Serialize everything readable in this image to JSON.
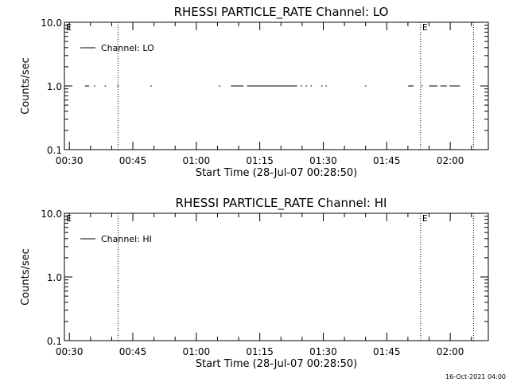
{
  "footer": {
    "timestamp": "16-Oct-2021 04:00"
  },
  "chart_data": [
    {
      "type": "line",
      "title": "RHESSI PARTICLE_RATE Channel: LO",
      "xlabel": "Start Time (28-Jul-07 00:28:50)",
      "ylabel": "Counts/sec",
      "yscale": "log",
      "ylim": [
        0.1,
        10.0
      ],
      "y_ticks": [
        "0.1",
        "1.0",
        "10.0"
      ],
      "xlim": [
        "00:28:50",
        "02:09:00"
      ],
      "x_ticks": [
        "00:30",
        "00:45",
        "01:00",
        "01:15",
        "01:30",
        "01:45",
        "02:00"
      ],
      "grid": false,
      "legend": {
        "position": "top-left",
        "entries": [
          "Channel: LO"
        ]
      },
      "event_markers": [
        {
          "time": "00:41:30",
          "label": ""
        },
        {
          "time": "01:53:00",
          "label": "E"
        },
        {
          "time": "02:05:30",
          "label": ""
        }
      ],
      "corner_flag": "E",
      "series": [
        {
          "name": "Channel: LO",
          "color": "#000000",
          "segments": [
            {
              "start": "00:33:40",
              "end": "00:34:40",
              "value": 1.0
            },
            {
              "start": "00:35:50",
              "end": "00:36:10",
              "value": 1.0
            },
            {
              "start": "00:38:20",
              "end": "00:38:40",
              "value": 1.0
            },
            {
              "start": "00:41:20",
              "end": "00:41:40",
              "value": 1.0
            },
            {
              "start": "00:49:10",
              "end": "00:49:30",
              "value": 1.0
            },
            {
              "start": "01:05:20",
              "end": "01:05:40",
              "value": 1.0
            },
            {
              "start": "01:08:10",
              "end": "01:11:10",
              "value": 1.0
            },
            {
              "start": "01:12:00",
              "end": "01:23:50",
              "value": 1.0
            },
            {
              "start": "01:24:40",
              "end": "01:25:00",
              "value": 1.0
            },
            {
              "start": "01:25:50",
              "end": "01:26:10",
              "value": 1.0
            },
            {
              "start": "01:27:00",
              "end": "01:27:20",
              "value": 1.0
            },
            {
              "start": "01:29:30",
              "end": "01:29:50",
              "value": 1.0
            },
            {
              "start": "01:30:30",
              "end": "01:30:50",
              "value": 1.0
            },
            {
              "start": "01:39:50",
              "end": "01:40:10",
              "value": 1.0
            },
            {
              "start": "01:50:00",
              "end": "01:51:20",
              "value": 1.0
            },
            {
              "start": "01:53:10",
              "end": "01:53:30",
              "value": 1.0
            },
            {
              "start": "01:55:00",
              "end": "01:57:00",
              "value": 1.0
            },
            {
              "start": "01:57:40",
              "end": "01:59:10",
              "value": 1.0
            },
            {
              "start": "01:59:50",
              "end": "02:02:20",
              "value": 1.0
            }
          ]
        }
      ]
    },
    {
      "type": "line",
      "title": "RHESSI PARTICLE_RATE Channel: HI",
      "xlabel": "Start Time (28-Jul-07 00:28:50)",
      "ylabel": "Counts/sec",
      "yscale": "log",
      "ylim": [
        0.1,
        10.0
      ],
      "y_ticks": [
        "0.1",
        "1.0",
        "10.0"
      ],
      "xlim": [
        "00:28:50",
        "02:09:00"
      ],
      "x_ticks": [
        "00:30",
        "00:45",
        "01:00",
        "01:15",
        "01:30",
        "01:45",
        "02:00"
      ],
      "grid": false,
      "legend": {
        "position": "top-left",
        "entries": [
          "Channel: HI"
        ]
      },
      "event_markers": [
        {
          "time": "00:41:30",
          "label": ""
        },
        {
          "time": "01:53:00",
          "label": "E"
        },
        {
          "time": "02:05:30",
          "label": ""
        }
      ],
      "corner_flag": "E",
      "series": [
        {
          "name": "Channel: HI",
          "color": "#000000",
          "segments": []
        }
      ]
    }
  ]
}
